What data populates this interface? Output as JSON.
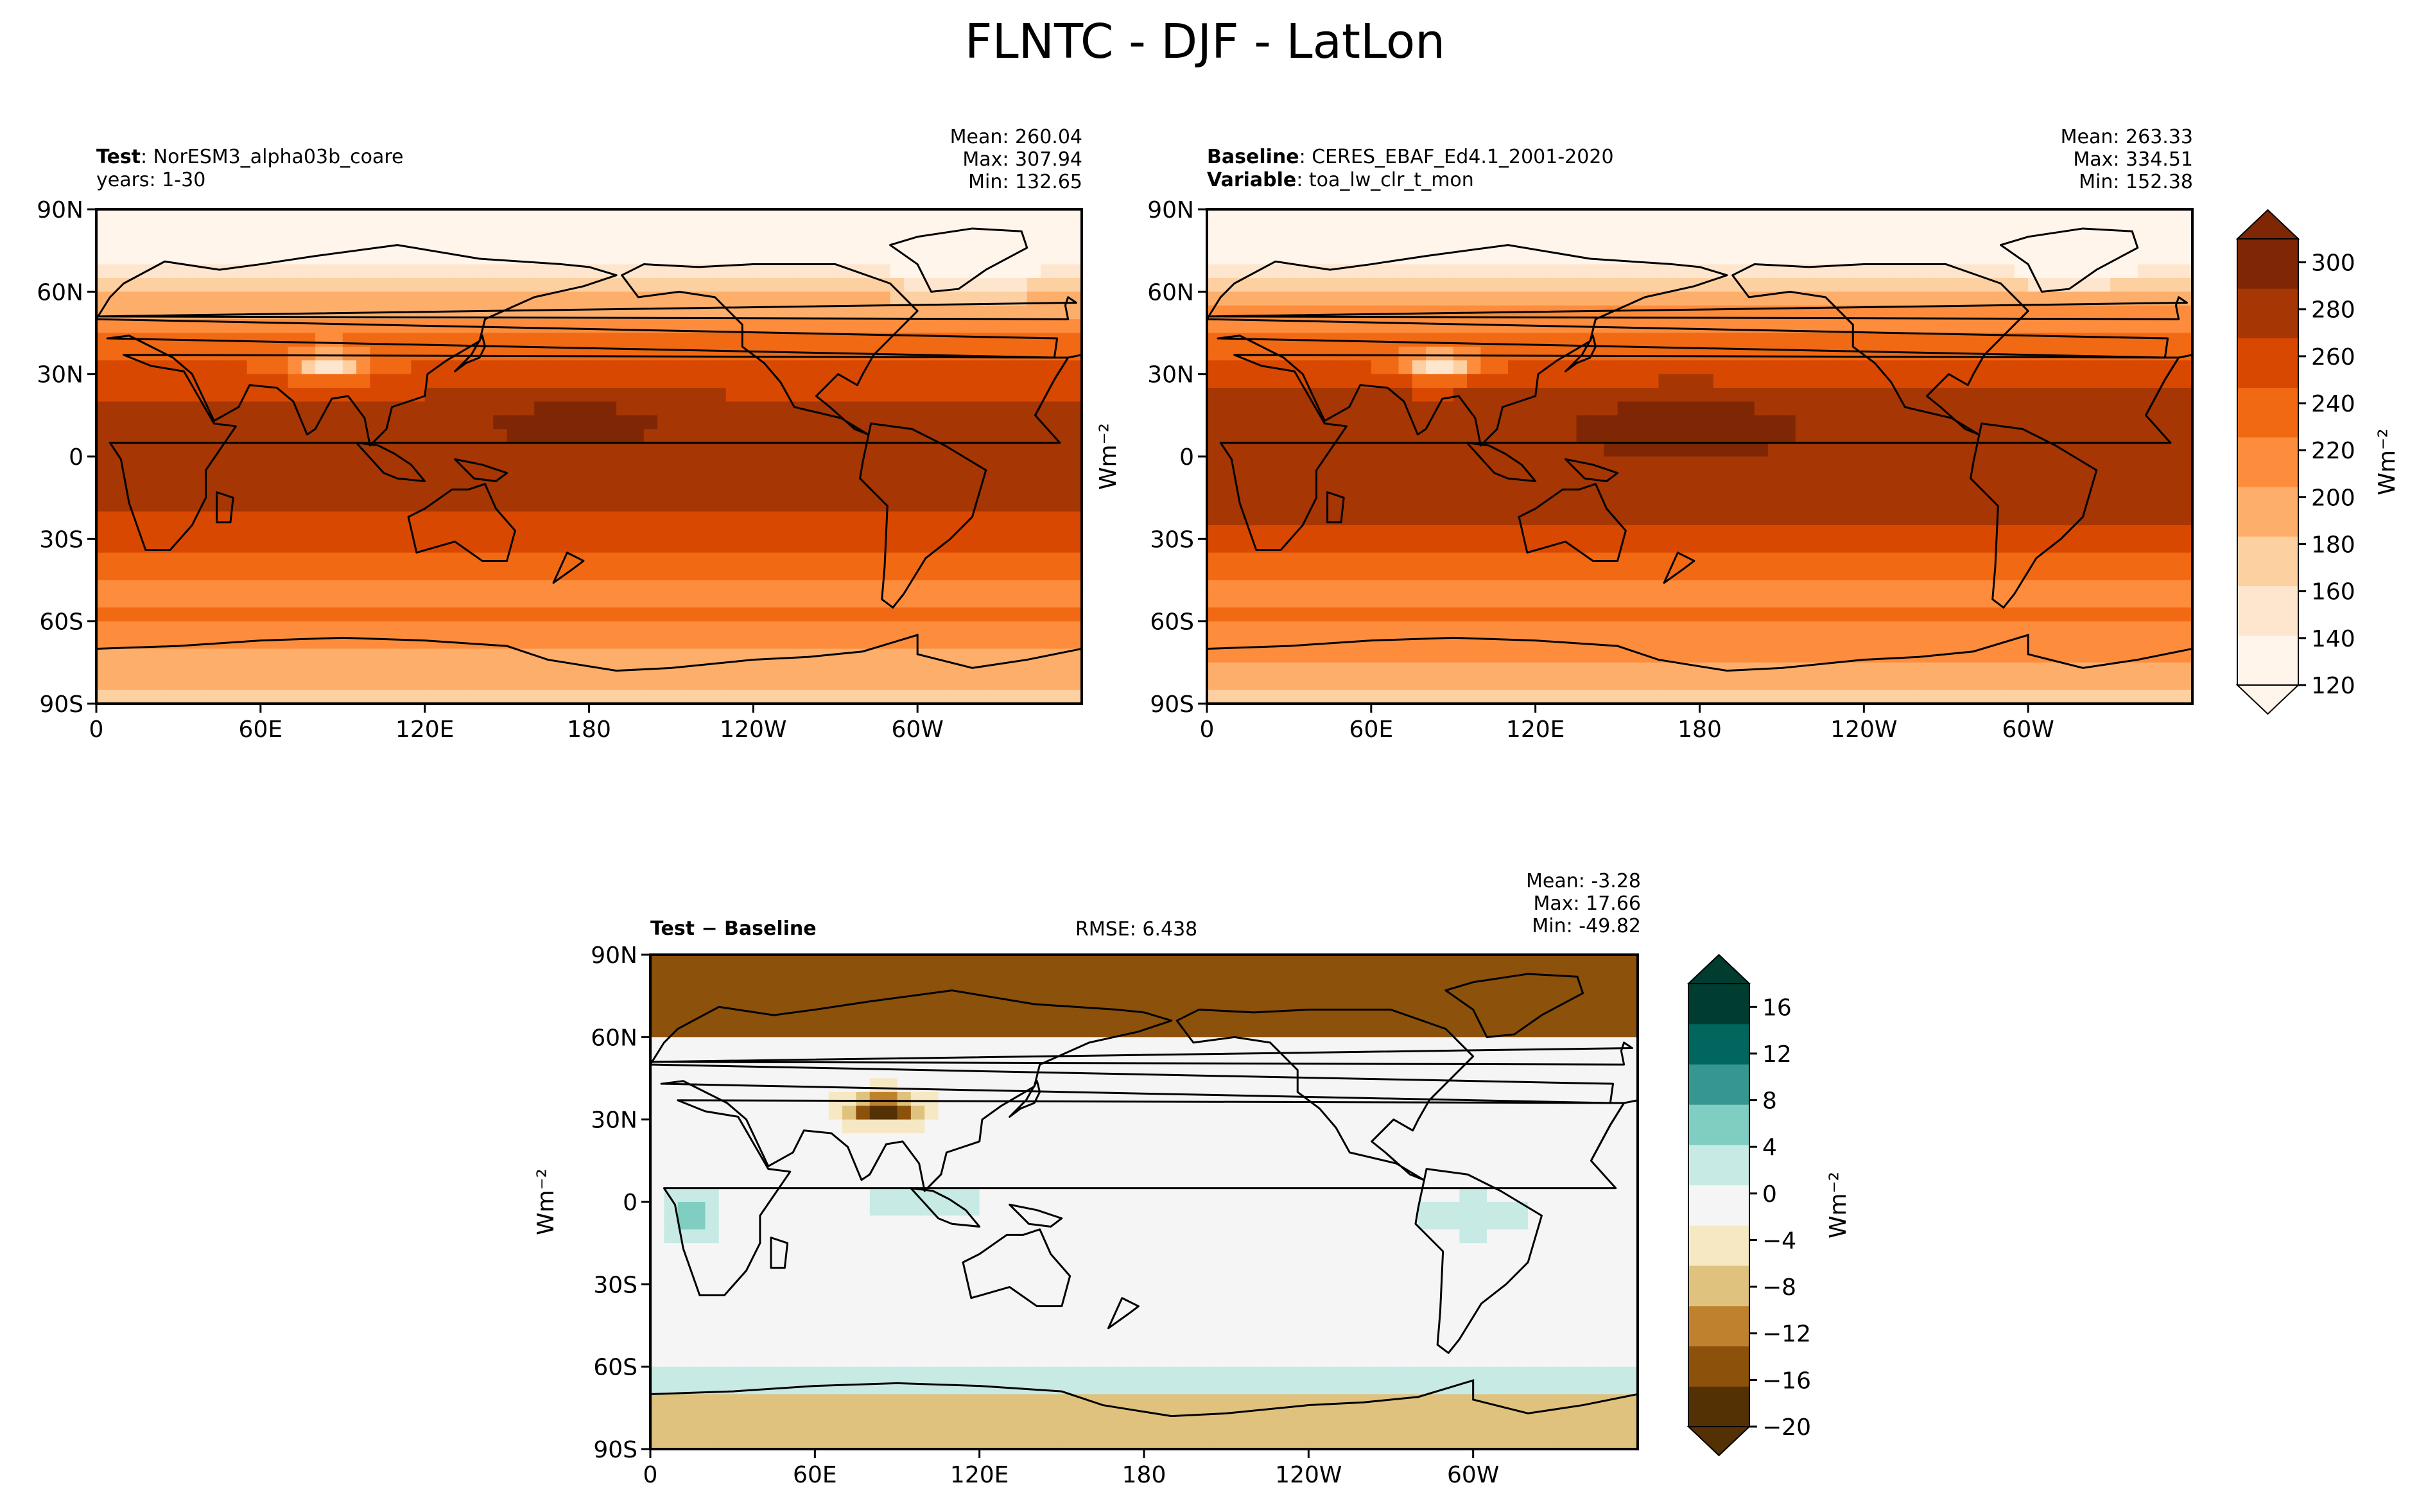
{
  "figure_title": "FLNTC - DJF - LatLon",
  "colors": {
    "oranges": [
      "#fff5eb",
      "#fee6ce",
      "#fdd0a2",
      "#fdae6b",
      "#fd8d3c",
      "#f16913",
      "#d94801",
      "#a63603",
      "#7f2704"
    ],
    "brbg": [
      "#543005",
      "#8c510a",
      "#bf812d",
      "#dfc27d",
      "#f6e8c3",
      "#f5f5f5",
      "#c7eae5",
      "#80cdc1",
      "#35978f",
      "#01665e",
      "#003c30"
    ],
    "frame": "#000000"
  },
  "chart_data": [
    {
      "type": "heatmap",
      "name": "test-panel",
      "left_labels": [
        {
          "bold": "Test",
          "text": ": NorESM3_alpha03b_coare"
        },
        {
          "bold": "",
          "text": "years: 1-30"
        }
      ],
      "stats": [
        "Mean: 260.04",
        "Max: 307.94",
        "Min: 132.65"
      ],
      "x_ticks": [
        "0",
        "60E",
        "120E",
        "180",
        "120W",
        "60W"
      ],
      "y_ticks": [
        "90N",
        "60N",
        "30N",
        "0",
        "30S",
        "60S",
        "90S"
      ],
      "mean": 260.04,
      "max": 307.94,
      "min": 132.65
    },
    {
      "type": "heatmap",
      "name": "baseline-panel",
      "left_labels": [
        {
          "bold": "Baseline",
          "text": ": CERES_EBAF_Ed4.1_2001-2020"
        },
        {
          "bold": "Variable",
          "text": ": toa_lw_clr_t_mon"
        }
      ],
      "stats": [
        "Mean: 263.33",
        "Max: 334.51",
        "Min: 152.38"
      ],
      "x_ticks": [
        "0",
        "60E",
        "120E",
        "180",
        "120W",
        "60W"
      ],
      "y_ticks": [
        "90N",
        "60N",
        "30N",
        "0",
        "30S",
        "60S",
        "90S"
      ],
      "mean": 263.33,
      "max": 334.51,
      "min": 152.38
    },
    {
      "type": "heatmap",
      "name": "diff-panel",
      "left_labels": [
        {
          "bold": "Test − Baseline",
          "text": ""
        }
      ],
      "rmse": "RMSE: 6.438",
      "stats": [
        "Mean: -3.28",
        "Max: 17.66",
        "Min: -49.82"
      ],
      "x_ticks": [
        "0",
        "60E",
        "120E",
        "180",
        "120W",
        "60W"
      ],
      "y_ticks": [
        "90N",
        "60N",
        "30N",
        "0",
        "30S",
        "60S",
        "90S"
      ],
      "ylabel": "Wm⁻²",
      "mean": -3.28,
      "max": 17.66,
      "min": -49.82
    }
  ],
  "colorbars": [
    {
      "name": "top-colorbar",
      "label": "Wm⁻²",
      "range": [
        120,
        310
      ],
      "ticks": [
        "120",
        "140",
        "160",
        "180",
        "200",
        "220",
        "240",
        "260",
        "280",
        "300"
      ],
      "tick_values": [
        120,
        140,
        160,
        180,
        200,
        220,
        240,
        260,
        280,
        300
      ]
    },
    {
      "name": "diff-colorbar",
      "label": "Wm⁻²",
      "range": [
        -20,
        18
      ],
      "ticks": [
        "−20",
        "−16",
        "−12",
        "−8",
        "−4",
        "0",
        "4",
        "8",
        "12",
        "16"
      ],
      "tick_values": [
        -20,
        -16,
        -12,
        -8,
        -4,
        0,
        4,
        8,
        12,
        16
      ]
    }
  ],
  "shared_ylabel": "Wm⁻²"
}
